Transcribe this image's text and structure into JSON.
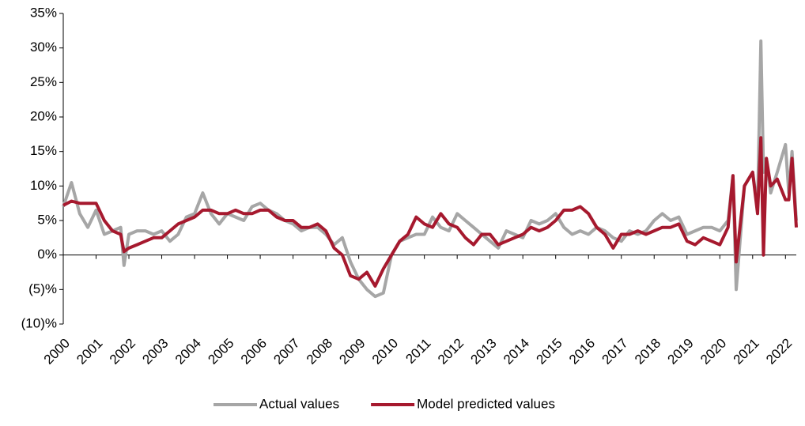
{
  "chart_data": {
    "type": "line",
    "x": [
      2000,
      2000.25,
      2000.5,
      2000.75,
      2001,
      2001.25,
      2001.5,
      2001.75,
      2001.85,
      2002,
      2002.25,
      2002.5,
      2002.75,
      2003,
      2003.25,
      2003.5,
      2003.75,
      2004,
      2004.25,
      2004.5,
      2004.75,
      2005,
      2005.25,
      2005.5,
      2005.75,
      2006,
      2006.25,
      2006.5,
      2006.75,
      2007,
      2007.25,
      2007.5,
      2007.75,
      2008,
      2008.25,
      2008.5,
      2008.75,
      2009,
      2009.25,
      2009.5,
      2009.75,
      2010,
      2010.25,
      2010.5,
      2010.75,
      2011,
      2011.25,
      2011.5,
      2011.75,
      2012,
      2012.25,
      2012.5,
      2012.75,
      2013,
      2013.25,
      2013.5,
      2013.75,
      2014,
      2014.25,
      2014.5,
      2014.75,
      2015,
      2015.25,
      2015.5,
      2015.75,
      2016,
      2016.25,
      2016.5,
      2016.75,
      2017,
      2017.25,
      2017.5,
      2017.75,
      2018,
      2018.25,
      2018.5,
      2018.75,
      2019,
      2019.25,
      2019.5,
      2019.75,
      2020,
      2020.25,
      2020.4,
      2020.5,
      2020.75,
      2021,
      2021.15,
      2021.25,
      2021.33,
      2021.42,
      2021.55,
      2021.75,
      2022,
      2022.1,
      2022.2,
      2022.33
    ],
    "series": [
      {
        "name": "Actual values",
        "color": "#a6a6a6",
        "values": [
          7,
          10.5,
          6,
          4,
          6.5,
          3,
          3.5,
          4,
          -1.5,
          3,
          3.5,
          3.5,
          3,
          3.5,
          2,
          3,
          5.5,
          6,
          9,
          6,
          4.5,
          6,
          5.5,
          5,
          7,
          7.5,
          6.5,
          6,
          5,
          4.5,
          3.5,
          4,
          4,
          3,
          1.5,
          2.5,
          -1,
          -3.5,
          -5,
          -6,
          -5.5,
          0,
          2,
          2.5,
          3,
          3,
          5.5,
          4,
          3.5,
          6,
          5,
          4,
          3,
          2,
          1,
          3.5,
          3,
          2.5,
          5,
          4.5,
          5,
          6,
          4,
          3,
          3.5,
          3,
          4,
          3.5,
          2.5,
          2,
          3.5,
          3,
          3.5,
          5,
          6,
          5,
          5.5,
          3,
          3.5,
          4,
          4,
          3.5,
          5,
          11.5,
          -5,
          10,
          12,
          7,
          31,
          12,
          14,
          9,
          12,
          16,
          9,
          15,
          5
        ]
      },
      {
        "name": "Model predicted values",
        "color": "#a6192e",
        "values": [
          7.2,
          7.8,
          7.5,
          7.5,
          7.5,
          5,
          3.5,
          3,
          0.5,
          1,
          1.5,
          2,
          2.5,
          2.5,
          3.5,
          4.5,
          5,
          5.5,
          6.5,
          6.5,
          6,
          6,
          6.5,
          6,
          6,
          6.5,
          6.5,
          5.5,
          5,
          5,
          4,
          4,
          4.5,
          3.5,
          1,
          0,
          -3,
          -3.5,
          -2.5,
          -4.5,
          -2,
          0,
          2,
          3,
          5.5,
          4.5,
          4,
          6,
          4.5,
          4,
          2.5,
          1.5,
          3,
          3,
          1.5,
          2,
          2.5,
          3,
          4,
          3.5,
          4,
          5,
          6.5,
          6.5,
          7,
          6,
          4,
          3,
          1,
          3,
          3,
          3.5,
          3,
          3.5,
          4,
          4,
          4.5,
          2,
          1.5,
          2.5,
          2,
          1.5,
          4,
          11.5,
          -1,
          10,
          12,
          6,
          17,
          0,
          14,
          10,
          11,
          8,
          8,
          14,
          4
        ]
      }
    ],
    "xlim": [
      2000,
      2022.33
    ],
    "xticks": [
      2000,
      2001,
      2002,
      2003,
      2004,
      2005,
      2006,
      2007,
      2008,
      2009,
      2010,
      2011,
      2012,
      2013,
      2014,
      2015,
      2016,
      2017,
      2018,
      2019,
      2020,
      2021,
      2022
    ],
    "ylim": [
      -10,
      35
    ],
    "yticks": [
      {
        "value": -10,
        "label": "(10)%"
      },
      {
        "value": -5,
        "label": "(5)%"
      },
      {
        "value": 0,
        "label": "0%"
      },
      {
        "value": 5,
        "label": "5%"
      },
      {
        "value": 10,
        "label": "10%"
      },
      {
        "value": 15,
        "label": "15%"
      },
      {
        "value": 20,
        "label": "20%"
      },
      {
        "value": 25,
        "label": "25%"
      },
      {
        "value": 30,
        "label": "30%"
      },
      {
        "value": {
          "value": 35,
          "label": "35%"
        }
      }
    ],
    "grid": false,
    "legend": "bottom"
  }
}
